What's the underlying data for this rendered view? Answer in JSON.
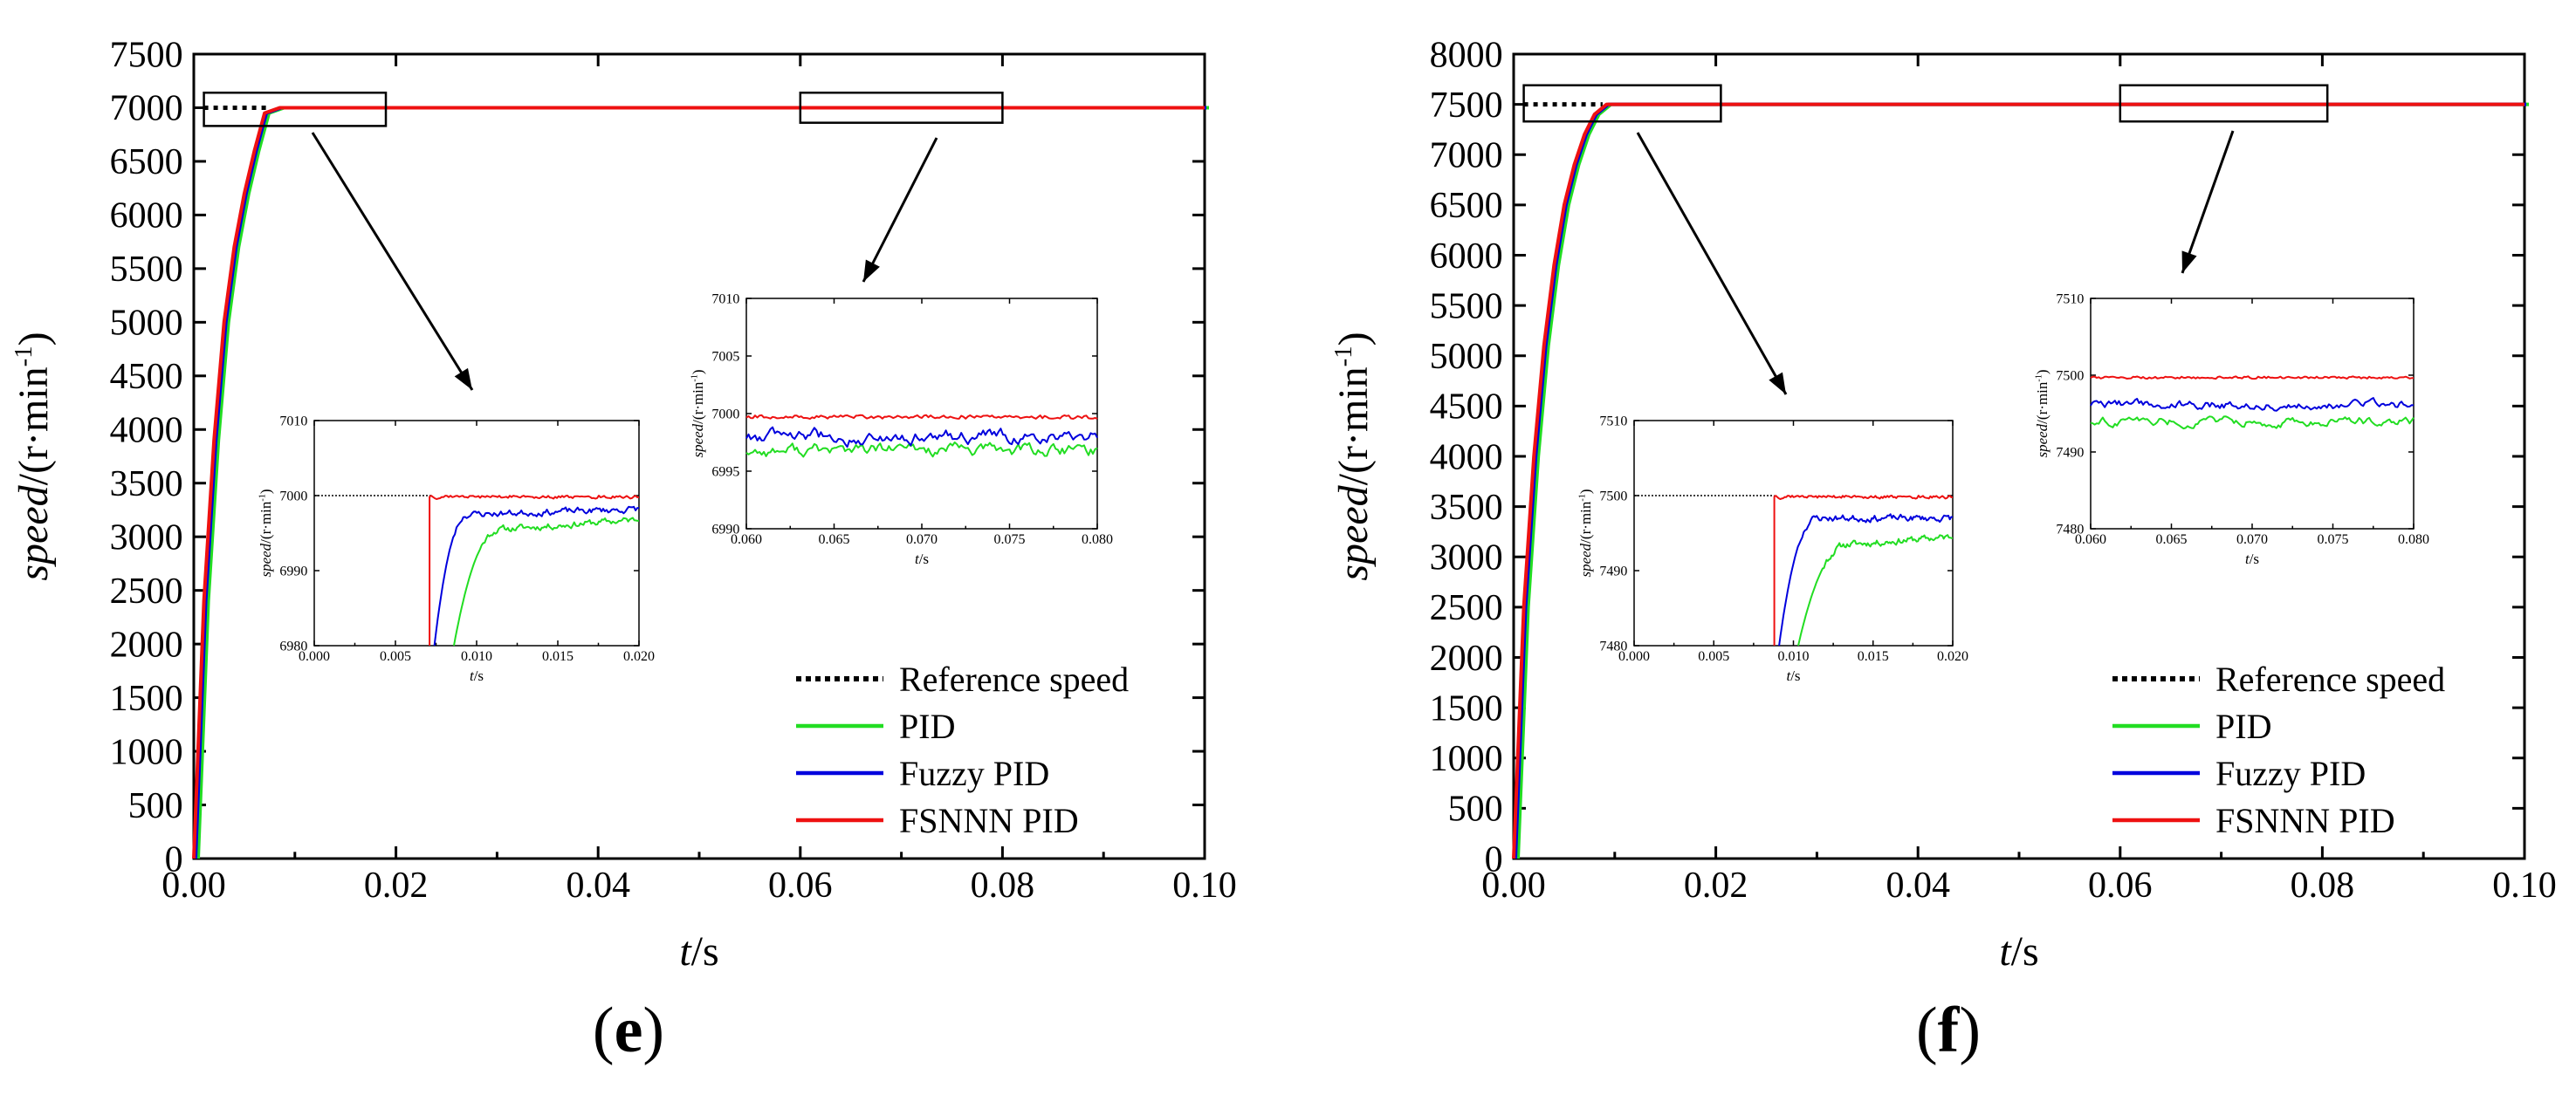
{
  "chart_data": [
    {
      "panel": "(e)",
      "panel_letter": "e",
      "type": "line",
      "xlabel": {
        "italic": "t",
        "rest": "/s"
      },
      "ylabel": {
        "italic": "speed",
        "rest": "/(r·min",
        "sup": "-1",
        "close": ")"
      },
      "xlim": [
        0,
        0.1
      ],
      "ylim": [
        0,
        7500
      ],
      "xticks": [
        "0.00",
        "0.02",
        "0.04",
        "0.06",
        "0.08",
        "0.10"
      ],
      "yticks": [
        "0",
        "500",
        "1000",
        "1500",
        "2000",
        "2500",
        "3000",
        "3500",
        "4000",
        "4500",
        "5000",
        "5500",
        "6000",
        "6500",
        "7000",
        "7500"
      ],
      "reference": 7000,
      "rise_end_time": 0.0072,
      "series": [
        {
          "name": "Reference speed",
          "color": "#000000",
          "style": "dotted"
        },
        {
          "name": "PID",
          "color": "#22dd22",
          "style": "solid"
        },
        {
          "name": "Fuzzy PID",
          "color": "#0000dd",
          "style": "solid"
        },
        {
          "name": "FSNNN PID",
          "color": "#ee1111",
          "style": "solid"
        }
      ],
      "main_rise": {
        "x": [
          0,
          0.001,
          0.002,
          0.003,
          0.004,
          0.005,
          0.006,
          0.007,
          0.0085,
          0.01,
          0.1
        ],
        "y": [
          0,
          2400,
          3900,
          5000,
          5700,
          6200,
          6600,
          6950,
          7000,
          7000,
          7000
        ]
      },
      "zoom_boxes": [
        {
          "xlim": [
            0.001,
            0.019
          ],
          "ylim": [
            6830,
            7140
          ]
        },
        {
          "xlim": [
            0.06,
            0.08
          ],
          "ylim": [
            6860,
            7140
          ]
        }
      ],
      "insets": [
        {
          "xlim": [
            0.0,
            0.02
          ],
          "ylim": [
            6980,
            7010
          ],
          "xticks": [
            "0.000",
            "0.005",
            "0.010",
            "0.015",
            "0.020"
          ],
          "yticks": [
            "6980",
            "6990",
            "7000",
            "7010"
          ],
          "ref_end_time": 0.0072,
          "step": {
            "FSNNN PID": 0.0071,
            "Fuzzy PID": 0.0074,
            "PID": 0.0086
          },
          "settle": {
            "PID": [
              0.0086,
              6980,
              0.0115,
              6995.5,
              0.02,
              6996.8
            ],
            "Fuzzy PID": [
              0.0074,
              6980,
              0.0095,
              6997.5,
              0.02,
              6998.2
            ],
            "FSNNN PID": [
              0.0071,
              7000,
              0.0072,
              7000,
              0.02,
              7000
            ]
          }
        },
        {
          "xlim": [
            0.06,
            0.08
          ],
          "ylim": [
            6990,
            7010
          ],
          "xticks": [
            "0.060",
            "0.065",
            "0.070",
            "0.075",
            "0.080"
          ],
          "yticks": [
            "6990",
            "6995",
            "7000",
            "7005",
            "7010"
          ],
          "levels": {
            "PID": 6996.8,
            "Fuzzy PID": 6998.0,
            "FSNNN PID": 6999.7
          }
        }
      ],
      "legend": "lower-right"
    },
    {
      "panel": "(f)",
      "panel_letter": "f",
      "type": "line",
      "xlabel": {
        "italic": "t",
        "rest": "/s"
      },
      "ylabel": {
        "italic": "speed",
        "rest": "/(r·min",
        "sup": "-1",
        "close": ")"
      },
      "xlim": [
        0,
        0.1
      ],
      "ylim": [
        0,
        8000
      ],
      "xticks": [
        "0.00",
        "0.02",
        "0.04",
        "0.06",
        "0.08",
        "0.10"
      ],
      "yticks": [
        "0",
        "500",
        "1000",
        "1500",
        "2000",
        "2500",
        "3000",
        "3500",
        "4000",
        "4500",
        "5000",
        "5500",
        "6000",
        "6500",
        "7000",
        "7500",
        "8000"
      ],
      "reference": 7500,
      "rise_end_time": 0.0088,
      "series": [
        {
          "name": "Reference speed",
          "color": "#000000",
          "style": "dotted"
        },
        {
          "name": "PID",
          "color": "#22dd22",
          "style": "solid"
        },
        {
          "name": "Fuzzy PID",
          "color": "#0000dd",
          "style": "solid"
        },
        {
          "name": "FSNNN PID",
          "color": "#ee1111",
          "style": "solid"
        }
      ],
      "main_rise": {
        "x": [
          0,
          0.001,
          0.002,
          0.003,
          0.004,
          0.005,
          0.006,
          0.007,
          0.008,
          0.0092,
          0.011,
          0.1
        ],
        "y": [
          0,
          2500,
          4000,
          5100,
          5900,
          6500,
          6900,
          7200,
          7400,
          7500,
          7500,
          7500
        ]
      },
      "zoom_boxes": [
        {
          "xlim": [
            0.001,
            0.0205
          ],
          "ylim": [
            7330,
            7690
          ]
        },
        {
          "xlim": [
            0.06,
            0.0805
          ],
          "ylim": [
            7330,
            7690
          ]
        }
      ],
      "insets": [
        {
          "xlim": [
            0.0,
            0.02
          ],
          "ylim": [
            7480,
            7510
          ],
          "xticks": [
            "0.000",
            "0.005",
            "0.010",
            "0.015",
            "0.020"
          ],
          "yticks": [
            "7480",
            "7490",
            "7500",
            "7510"
          ],
          "ref_end_time": 0.0088,
          "step": {
            "FSNNN PID": 0.0088,
            "Fuzzy PID": 0.0091,
            "PID": 0.0103
          },
          "settle": {
            "PID": [
              0.0103,
              7480,
              0.0135,
              7493.5,
              0.02,
              7494.5
            ],
            "Fuzzy PID": [
              0.0091,
              7480,
              0.0115,
              7497.0,
              0.02,
              7497.0
            ],
            "FSNNN PID": [
              0.0088,
              7500,
              0.0089,
              7500,
              0.02,
              7500
            ]
          }
        },
        {
          "xlim": [
            0.06,
            0.08
          ],
          "ylim": [
            7480,
            7510
          ],
          "xticks": [
            "0.060",
            "0.065",
            "0.070",
            "0.075",
            "0.080"
          ],
          "yticks": [
            "7480",
            "7490",
            "7500",
            "7510"
          ],
          "levels": {
            "PID": 7494.0,
            "Fuzzy PID": 7496.2,
            "FSNNN PID": 7499.7
          }
        }
      ],
      "legend": "lower-right"
    }
  ]
}
